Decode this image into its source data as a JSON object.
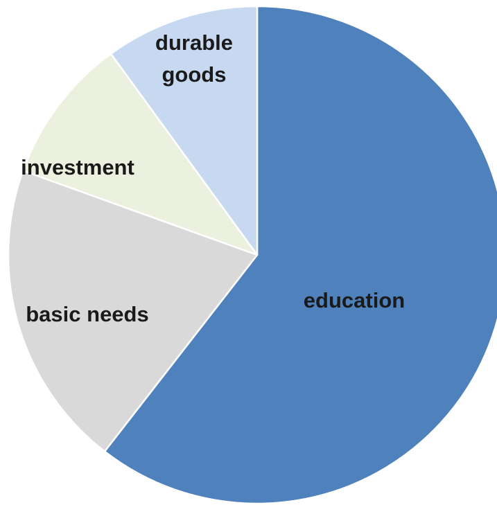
{
  "chart_data": {
    "type": "pie",
    "title": "",
    "start_angle_deg": 0,
    "direction": "clockwise",
    "legend": "none",
    "slices": [
      {
        "label": "education",
        "value": 60.5,
        "color": "#4f81bd"
      },
      {
        "label": "basic needs",
        "value": 20.0,
        "color": "#d9d9d9"
      },
      {
        "label": "investment",
        "value": 9.5,
        "color": "#ebf1de"
      },
      {
        "label": "durable goods",
        "value": 10.0,
        "color": "#c6d9f1"
      }
    ]
  }
}
